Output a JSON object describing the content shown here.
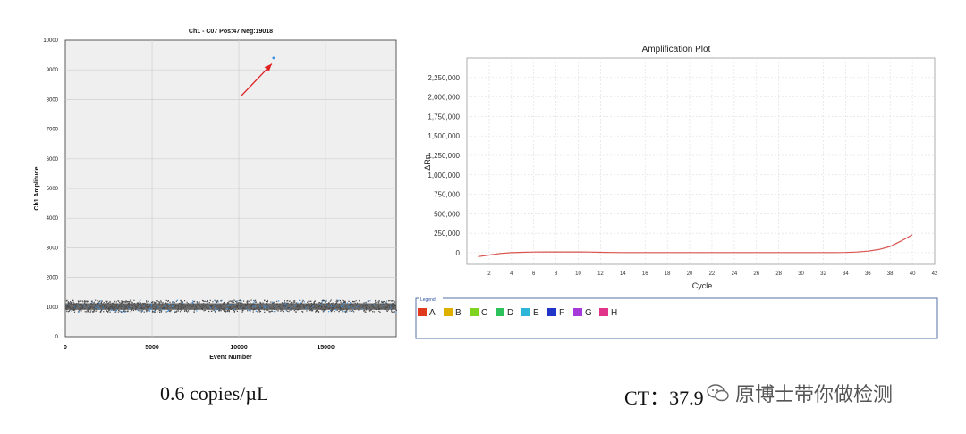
{
  "left_panel": {
    "caption": "0.6 copies/µL"
  },
  "right_panel": {
    "caption": "CT：37.9",
    "legend": {
      "title": "Legend",
      "items": [
        {
          "label": "A",
          "color": "#e03a1e"
        },
        {
          "label": "B",
          "color": "#e0b000"
        },
        {
          "label": "C",
          "color": "#7ed321"
        },
        {
          "label": "D",
          "color": "#2ec25e"
        },
        {
          "label": "E",
          "color": "#2bb6d8"
        },
        {
          "label": "F",
          "color": "#2035c8"
        },
        {
          "label": "G",
          "color": "#a63ad8"
        },
        {
          "label": "H",
          "color": "#e0358a"
        }
      ]
    }
  },
  "watermark": {
    "text": "原博士带你做检测"
  },
  "chart_data": [
    {
      "type": "scatter",
      "title": "Ch1 - C07 Pos:47 Neg:19018",
      "xlabel": "Event Number",
      "ylabel": "Ch1 Amplitude",
      "xlim": [
        0,
        19065
      ],
      "ylim": [
        0,
        10000
      ],
      "xticks": [
        0,
        5000,
        10000,
        15000
      ],
      "yticks": [
        0,
        1000,
        2000,
        3000,
        4000,
        5000,
        6000,
        7000,
        8000,
        9000,
        10000
      ],
      "grid": true,
      "series": [
        {
          "color": "#555555",
          "description_band": [
            850,
            1250
          ]
        },
        {
          "color": "#3a8fe0",
          "points": [
            [
              12000,
              9400
            ]
          ]
        }
      ],
      "annotation": {
        "type": "arrow",
        "color": "#e02020",
        "from": [
          10100,
          8100
        ],
        "to": [
          11900,
          9200
        ]
      }
    },
    {
      "type": "line",
      "title": "Amplification Plot",
      "xlabel": "Cycle",
      "ylabel": "ΔRn",
      "xlim": [
        0,
        42
      ],
      "ylim": [
        -150000,
        2500000
      ],
      "xticks": [
        2,
        4,
        6,
        8,
        10,
        12,
        14,
        16,
        18,
        20,
        22,
        24,
        26,
        28,
        30,
        32,
        34,
        36,
        38,
        40,
        42
      ],
      "yticks": [
        0,
        250000,
        500000,
        750000,
        1000000,
        1250000,
        1500000,
        1750000,
        2000000,
        2250000
      ],
      "grid": true,
      "series": [
        {
          "color": "#d9534f",
          "x": [
            1,
            2,
            3,
            4,
            5,
            6,
            7,
            8,
            9,
            10,
            11,
            12,
            13,
            14,
            15,
            16,
            17,
            18,
            19,
            20,
            21,
            22,
            23,
            24,
            25,
            26,
            27,
            28,
            29,
            30,
            31,
            32,
            33,
            34,
            35,
            36,
            37,
            38,
            39,
            40
          ],
          "values": [
            -50000,
            -30000,
            -10000,
            0,
            5000,
            8000,
            10000,
            10000,
            10000,
            10000,
            8000,
            5000,
            3000,
            2000,
            2000,
            2000,
            2000,
            2000,
            2000,
            2000,
            2000,
            2000,
            2000,
            2000,
            2000,
            2000,
            2000,
            2000,
            2000,
            2000,
            2000,
            2000,
            2000,
            3000,
            8000,
            20000,
            40000,
            80000,
            150000,
            230000
          ]
        }
      ]
    }
  ]
}
